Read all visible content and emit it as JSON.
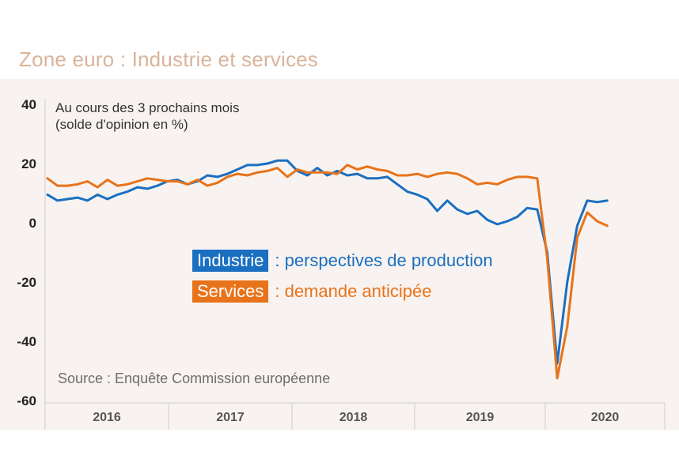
{
  "chart_data": {
    "type": "line",
    "title": "Zone euro : Industrie et services",
    "subtitle_line1": "Au cours des 3 prochains mois",
    "subtitle_line2": "(solde d'opinion en %)",
    "source": "Source : Enquête Commission européenne",
    "ylim": [
      -60,
      40
    ],
    "yticks": [
      "40",
      "20",
      "0",
      "-20",
      "-40",
      "-60"
    ],
    "ytick_values": [
      40,
      20,
      0,
      -20,
      -40,
      -60
    ],
    "xtick_labels": [
      "2016",
      "2017",
      "2018",
      "2019",
      "2020"
    ],
    "x_start": 2016.0,
    "x_step": 0.08333,
    "series": [
      {
        "name": "Industrie",
        "legend_tag": "Industrie",
        "legend_text": ": perspectives de production",
        "color": "#1a6fc1",
        "values": [
          9.5,
          7.5,
          8,
          8.5,
          7.5,
          9.5,
          8,
          9.5,
          10.5,
          12,
          11.5,
          12.5,
          14,
          14.5,
          13,
          14,
          16,
          15.5,
          16.5,
          18,
          19.5,
          19.5,
          20,
          21,
          21,
          17.5,
          16,
          18.5,
          16,
          17.5,
          16,
          16.5,
          15,
          15,
          15.5,
          13,
          10.5,
          9.5,
          8,
          4,
          7.5,
          4.5,
          3,
          4,
          1,
          -0.5,
          0.5,
          2,
          5,
          4.5,
          -10,
          -47.5,
          -20,
          -1,
          7.5,
          7,
          7.5
        ]
      },
      {
        "name": "Services",
        "legend_tag": "Services",
        "legend_text": ": demande anticipée",
        "color": "#e8731a",
        "values": [
          15,
          12.5,
          12.5,
          13,
          14,
          12,
          14.5,
          12.5,
          13,
          14,
          15,
          14.5,
          14,
          14,
          13,
          14.5,
          12.5,
          13.5,
          15.5,
          16.5,
          16,
          17,
          17.5,
          18.5,
          15.5,
          18,
          17,
          17,
          17,
          16.5,
          19.5,
          18,
          19,
          18,
          17.5,
          16,
          16,
          16.5,
          15.5,
          16.5,
          17,
          16.5,
          15,
          13,
          13.5,
          13,
          14.5,
          15.5,
          15.5,
          15,
          -12,
          -52.5,
          -35,
          -5,
          3.5,
          0.5,
          -1
        ]
      }
    ]
  }
}
